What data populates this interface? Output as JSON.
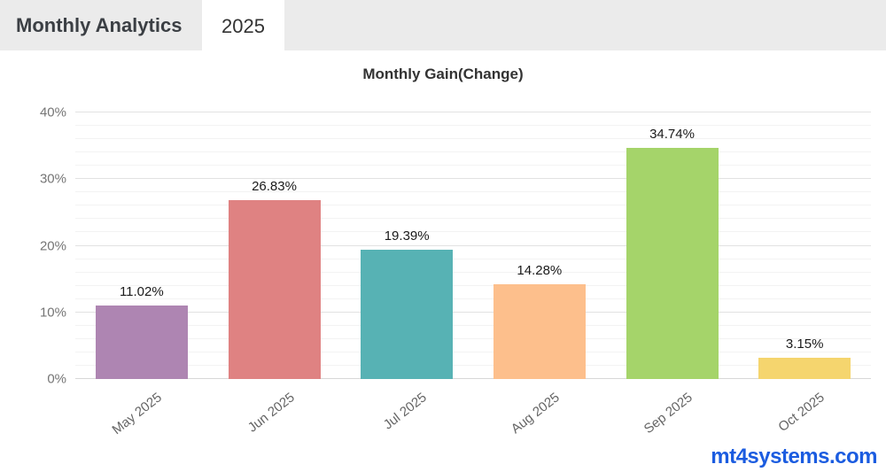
{
  "header": {
    "title": "Monthly Analytics",
    "tab_label": "2025"
  },
  "chart_data": {
    "type": "bar",
    "title": "Monthly Gain(Change)",
    "categories": [
      "May 2025",
      "Jun 2025",
      "Jul 2025",
      "Aug 2025",
      "Sep 2025",
      "Oct 2025"
    ],
    "values": [
      11.02,
      26.83,
      19.39,
      14.28,
      34.74,
      3.15
    ],
    "value_labels": [
      "11.02%",
      "26.83%",
      "19.39%",
      "14.28%",
      "34.74%",
      "3.15%"
    ],
    "bar_colors": [
      "#ae85b2",
      "#df8282",
      "#57b2b4",
      "#fdbf8c",
      "#a5d46a",
      "#f5d56e"
    ],
    "xlabel": "",
    "ylabel": "",
    "ylim": [
      0,
      40
    ],
    "ytick_step": 10,
    "minor_grid_step": 2,
    "ytick_labels": [
      "0%",
      "10%",
      "20%",
      "30%",
      "40%"
    ],
    "grid": true,
    "legend": false
  },
  "watermark": {
    "text": "mt4systems.com",
    "color": "#1b5ce0"
  }
}
